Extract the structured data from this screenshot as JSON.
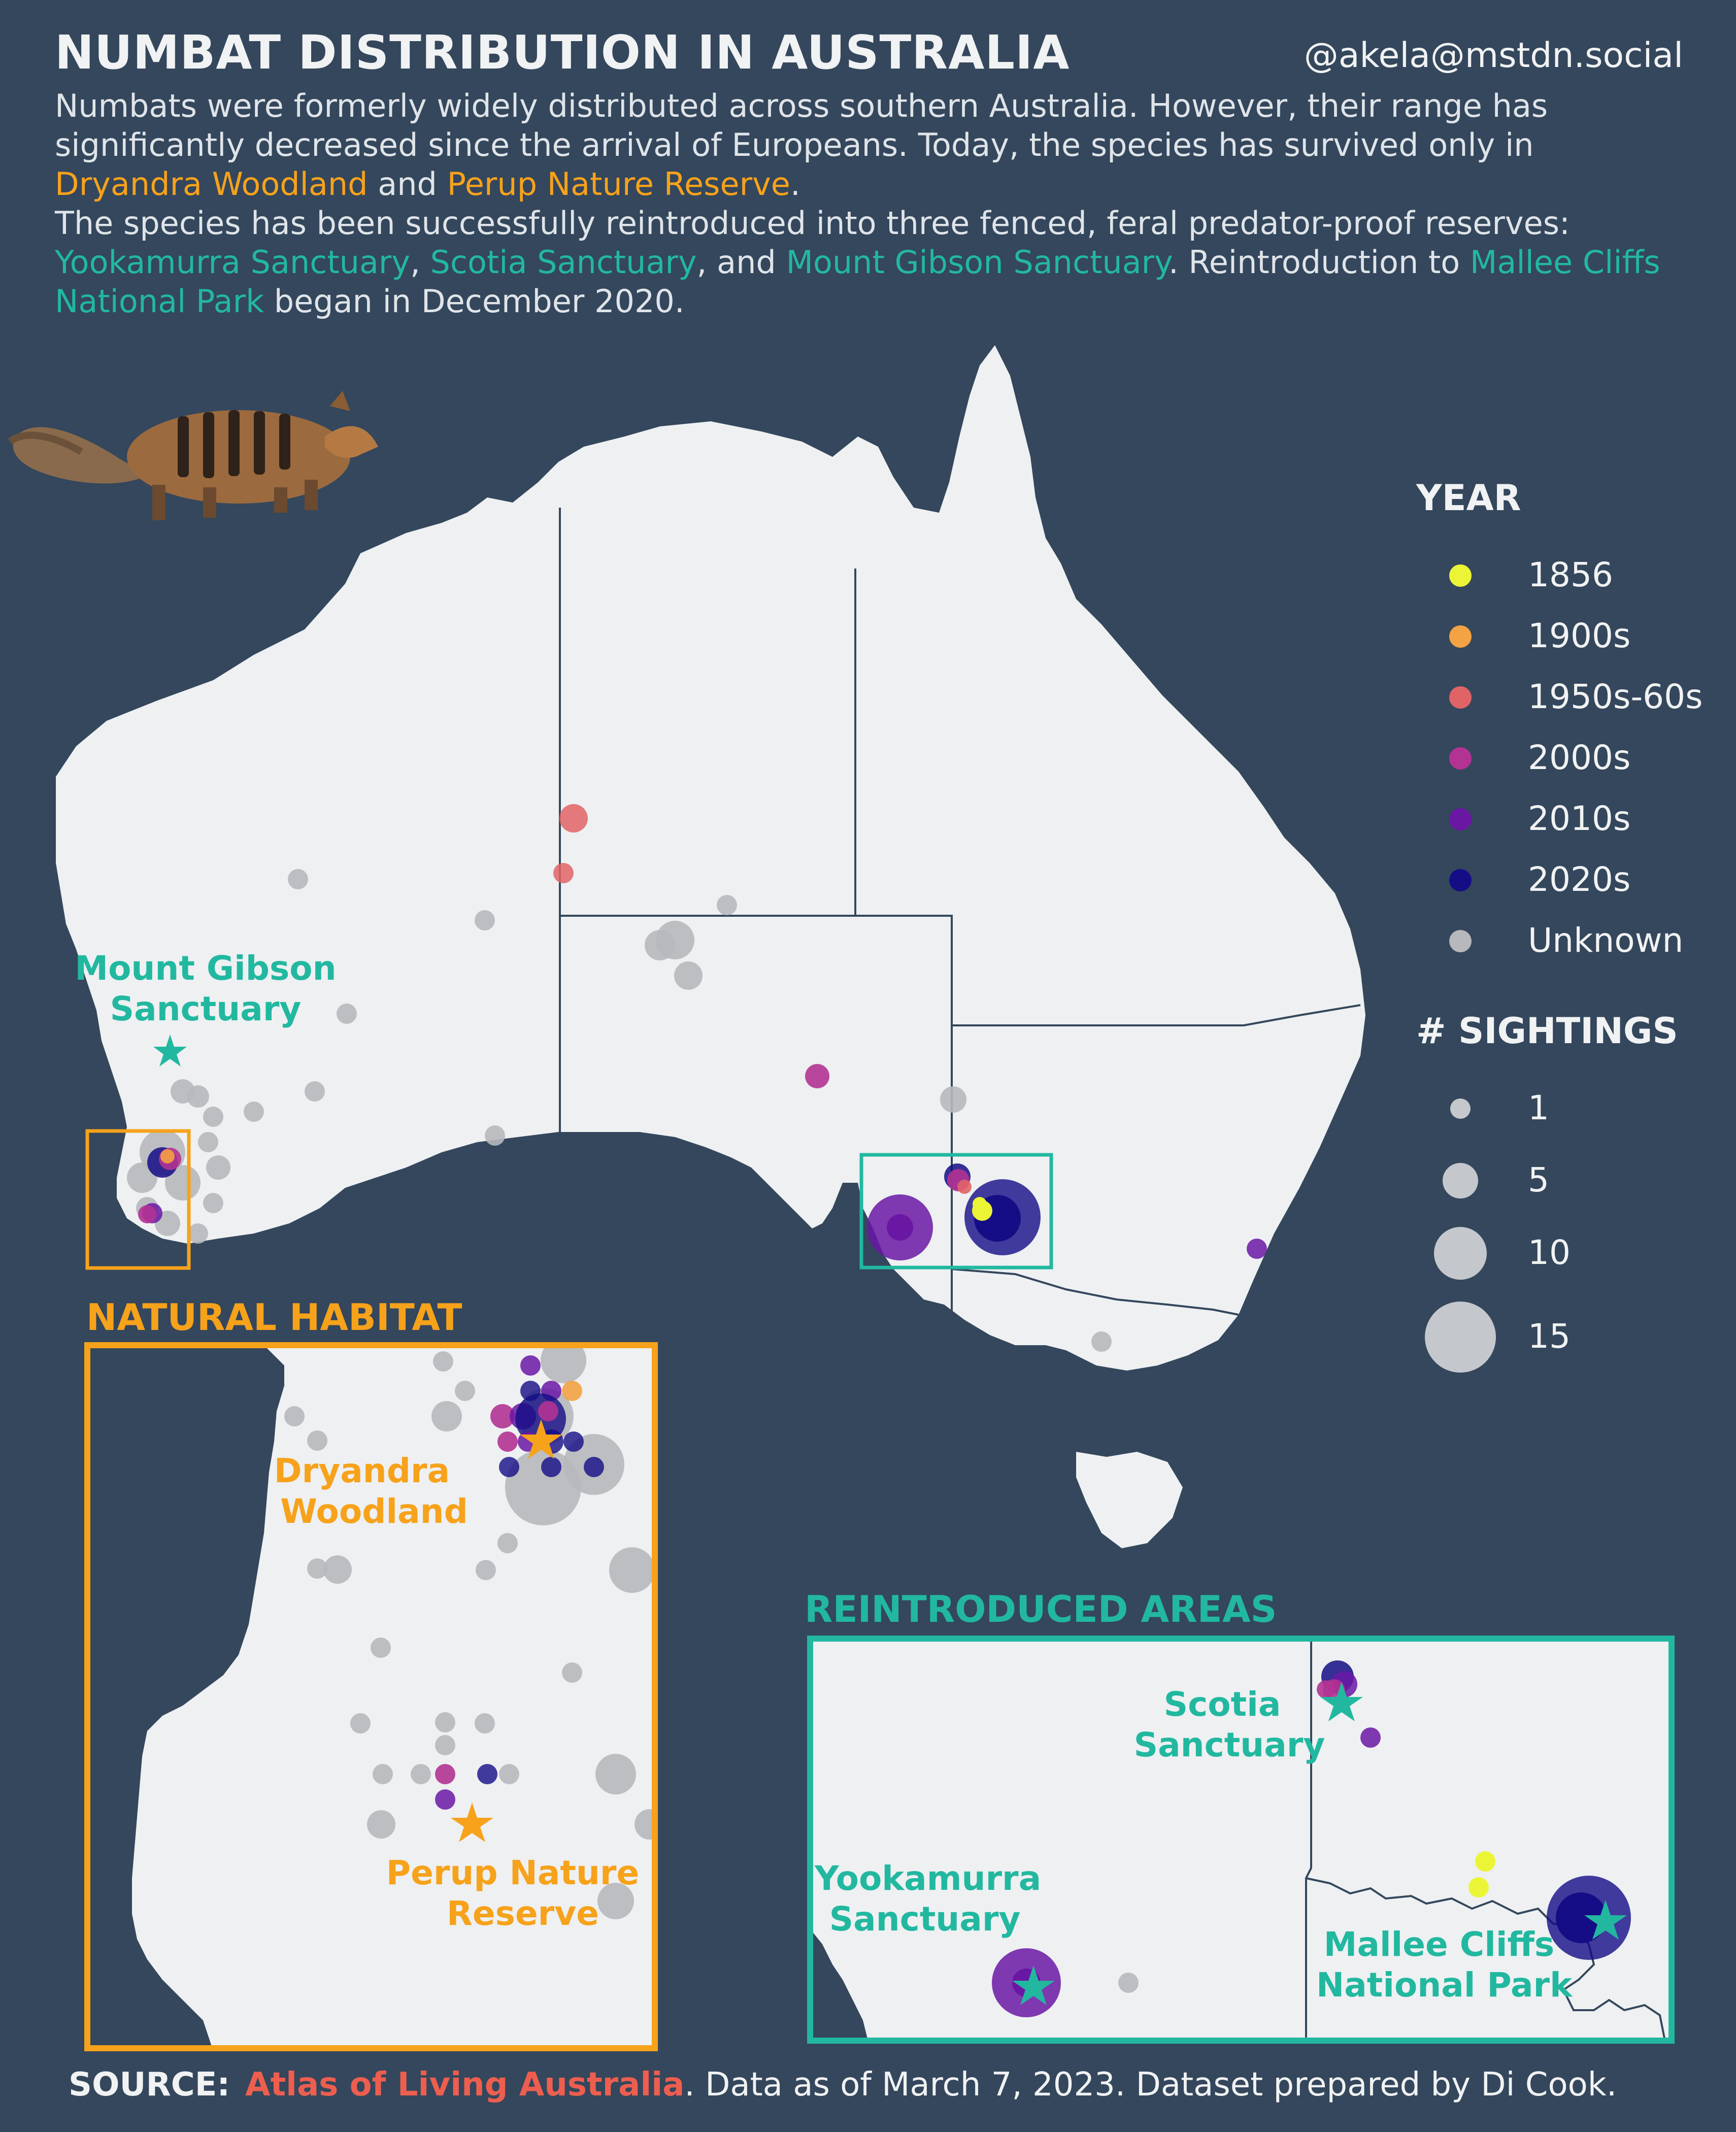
{
  "header": {
    "title": "NUMBAT DISTRIBUTION IN AUSTRALIA",
    "handle": "@akela@mstdn.social",
    "intro_1": "Numbats were formerly widely distributed across southern Australia. However, their range has significantly decreased since the arrival of Europeans. Today, the species has survived only in ",
    "dryandra": "Dryandra Woodland",
    "and_1": " and ",
    "perup": "Perup Nature Reserve",
    "intro_2": ".",
    "intro_3": "The species has been successfully reintroduced into three fenced, feral predator-proof reserves: ",
    "yookamurra": "Yookamurra Sanctuary",
    "comma_1": ", ",
    "scotia": "Scotia Sanctuary",
    "and_2": ", and ",
    "mount_gibson": "Mount Gibson Sanctuary",
    "intro_4": ". Reintroduction to ",
    "mallee": "Mallee Cliffs National Park",
    "intro_5": " began in December 2020."
  },
  "map_labels": {
    "mount_gibson_1": "Mount Gibson",
    "mount_gibson_2": "Sanctuary",
    "natural_habitat": "NATURAL HABITAT",
    "dryandra_1": "Dryandra",
    "dryandra_2": "Woodland",
    "perup_1": "Perup Nature",
    "perup_2": "Reserve",
    "reintroduced": "REINTRODUCED AREAS",
    "scotia_1": "Scotia",
    "scotia_2": "Sanctuary",
    "yookamurra_1": "Yookamurra",
    "yookamurra_2": "Sanctuary",
    "mallee_1": "Mallee Cliffs",
    "mallee_2": "National Park"
  },
  "legend": {
    "year_title": "YEAR",
    "years": [
      {
        "label": "1856",
        "color": "#ecf535"
      },
      {
        "label": "1900s",
        "color": "#f3a244"
      },
      {
        "label": "1950s-60s",
        "color": "#e06466"
      },
      {
        "label": "2000s",
        "color": "#b23394"
      },
      {
        "label": "2010s",
        "color": "#6a17a4"
      },
      {
        "label": "2020s",
        "color": "#140d86"
      },
      {
        "label": "Unknown",
        "color": "#b6b8bc"
      }
    ],
    "size_title": "# SIGHTINGS",
    "sizes": [
      {
        "label": "1",
        "value": 1
      },
      {
        "label": "5",
        "value": 5
      },
      {
        "label": "10",
        "value": 10
      },
      {
        "label": "15",
        "value": 15
      }
    ]
  },
  "colors": {
    "background": "#34475c",
    "land": "#eef0f2",
    "orange": "#f7a21b",
    "teal": "#22b8a0",
    "source_red": "#ee5e4f"
  },
  "footer": {
    "source_label": "SOURCE:",
    "source_name": "Atlas of Living Australia",
    "source_rest": ". Data as of March 7, 2023. Dataset prepared by Di Cook."
  }
}
